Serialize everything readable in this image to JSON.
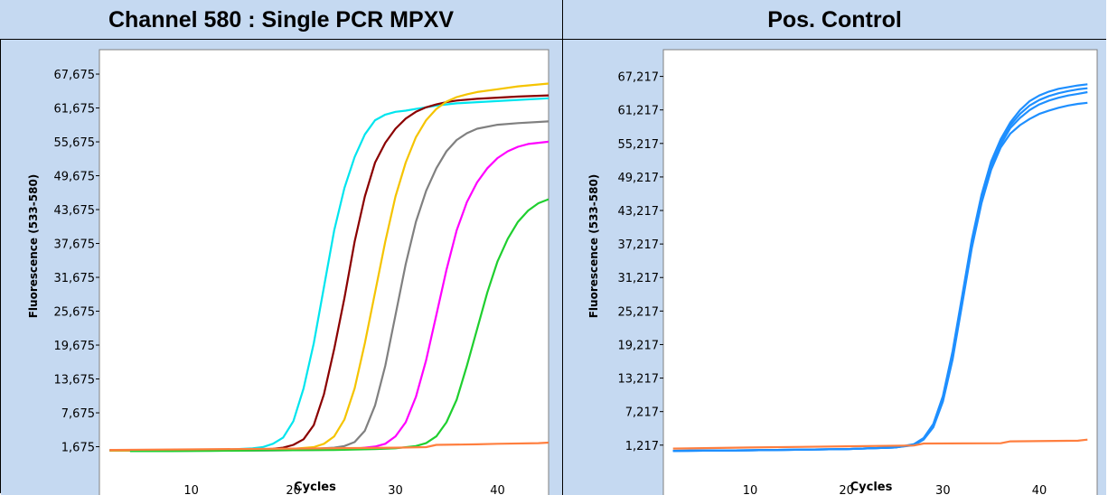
{
  "panels": [
    {
      "title": "Channel 580 : Single PCR MPXV",
      "chart_data": {
        "type": "line",
        "xlabel": "Cycles",
        "ylabel": "Fluorescence (533-580)",
        "xlim": [
          1,
          45
        ],
        "ylim": [
          -4000,
          72000
        ],
        "x_ticks": [
          10,
          20,
          30,
          40
        ],
        "y_ticks": [
          1675,
          7675,
          13675,
          19675,
          25675,
          31675,
          37675,
          43675,
          49675,
          55675,
          61675,
          67675
        ],
        "y_tick_labels": [
          "1,675",
          "7,675",
          "13,675",
          "19,675",
          "25,675",
          "31,675",
          "37,675",
          "43,675",
          "49,675",
          "55,675",
          "61,675",
          "67,675"
        ],
        "grid": false,
        "series": [
          {
            "color": "#00e5ee",
            "x": [
              2,
              6,
              10,
              14,
              16,
              17,
              18,
              19,
              20,
              21,
              22,
              23,
              24,
              25,
              26,
              27,
              28,
              29,
              30,
              31,
              32,
              33,
              34,
              35,
              36,
              38,
              40,
              42,
              45
            ],
            "values": [
              1000,
              1050,
              1100,
              1200,
              1400,
              1600,
              2200,
              3300,
              6200,
              12000,
              20000,
              30000,
              40000,
              47500,
              53000,
              57000,
              59500,
              60500,
              61000,
              61200,
              61500,
              61800,
              62100,
              62300,
              62500,
              62700,
              62900,
              63100,
              63400
            ]
          },
          {
            "color": "#8b0000",
            "x": [
              2,
              6,
              10,
              14,
              16,
              18,
              19,
              20,
              21,
              22,
              23,
              24,
              25,
              26,
              27,
              28,
              29,
              30,
              31,
              32,
              33,
              34,
              35,
              36,
              38,
              40,
              42,
              45
            ],
            "values": [
              1000,
              1000,
              1050,
              1100,
              1150,
              1300,
              1500,
              2000,
              3000,
              5500,
              11000,
              19000,
              28000,
              38000,
              46000,
              52000,
              55500,
              58000,
              59800,
              61000,
              61800,
              62300,
              62700,
              63000,
              63300,
              63500,
              63700,
              63900
            ]
          },
          {
            "color": "#f5c400",
            "x": [
              2,
              6,
              10,
              14,
              18,
              20,
              22,
              23,
              24,
              25,
              26,
              27,
              28,
              29,
              30,
              31,
              32,
              33,
              34,
              35,
              36,
              37,
              38,
              40,
              42,
              45
            ],
            "values": [
              1000,
              1000,
              1000,
              1050,
              1150,
              1300,
              1600,
              2200,
              3500,
              6500,
              12000,
              20000,
              29000,
              38000,
              46000,
              52000,
              56500,
              59500,
              61500,
              62800,
              63600,
              64100,
              64500,
              65000,
              65500,
              66000
            ]
          },
          {
            "color": "#808080",
            "x": [
              2,
              6,
              10,
              14,
              18,
              22,
              24,
              25,
              26,
              27,
              28,
              29,
              30,
              31,
              32,
              33,
              34,
              35,
              36,
              37,
              38,
              40,
              42,
              45
            ],
            "values": [
              1100,
              1100,
              1100,
              1100,
              1150,
              1300,
              1500,
              1800,
              2500,
              4500,
              9000,
              16000,
              25000,
              34000,
              41500,
              47000,
              51000,
              54000,
              56000,
              57200,
              58000,
              58700,
              59000,
              59300
            ]
          },
          {
            "color": "#ff00ff",
            "x": [
              4,
              8,
              12,
              16,
              20,
              24,
              26,
              28,
              29,
              30,
              31,
              32,
              33,
              34,
              35,
              36,
              37,
              38,
              39,
              40,
              41,
              42,
              43,
              45
            ],
            "values": [
              900,
              950,
              1000,
              1000,
              1050,
              1150,
              1300,
              1700,
              2200,
              3500,
              6000,
              10500,
              17000,
              25000,
              33000,
              40000,
              45000,
              48500,
              51000,
              52800,
              54000,
              54800,
              55300,
              55700
            ]
          },
          {
            "color": "#1fcf2f",
            "x": [
              4,
              8,
              12,
              16,
              20,
              24,
              28,
              30,
              32,
              33,
              34,
              35,
              36,
              37,
              38,
              39,
              40,
              41,
              42,
              43,
              44,
              45
            ],
            "values": [
              900,
              900,
              950,
              1000,
              1050,
              1100,
              1250,
              1400,
              1800,
              2300,
              3500,
              6000,
              10000,
              16000,
              22500,
              29000,
              34500,
              38500,
              41500,
              43500,
              44800,
              45500
            ]
          },
          {
            "color": "#ff7f3f",
            "x": [
              2,
              10,
              20,
              30,
              33,
              34,
              38,
              40,
              44,
              45
            ],
            "values": [
              1100,
              1200,
              1350,
              1500,
              1600,
              2000,
              2100,
              2200,
              2300,
              2400
            ]
          }
        ]
      }
    },
    {
      "title": "Pos. Control",
      "chart_data": {
        "type": "line",
        "xlabel": "Cycles",
        "ylabel": "Fluorescence (533-580)",
        "xlim": [
          1,
          46
        ],
        "ylim": [
          -4800,
          72000
        ],
        "x_ticks": [
          10,
          20,
          30,
          40
        ],
        "y_ticks": [
          1217,
          7217,
          13217,
          19217,
          25217,
          31217,
          37217,
          43217,
          49217,
          55217,
          61217,
          67217
        ],
        "y_tick_labels": [
          "1,217",
          "7,217",
          "13,217",
          "19,217",
          "25,217",
          "31,217",
          "37,217",
          "43,217",
          "49,217",
          "55,217",
          "61,217",
          "67,217"
        ],
        "grid": false,
        "series": [
          {
            "color": "#1e8fff",
            "x": [
              2,
              10,
              20,
              25,
              27,
              28,
              29,
              30,
              31,
              32,
              33,
              34,
              35,
              36,
              37,
              38,
              39,
              40,
              41,
              42,
              43,
              44,
              45
            ],
            "values": [
              200,
              300,
              500,
              800,
              1400,
              2500,
              5000,
              10000,
              18000,
              28000,
              38000,
              46000,
              52000,
              56000,
              59000,
              61200,
              62800,
              63800,
              64500,
              65000,
              65300,
              65600,
              65800
            ]
          },
          {
            "color": "#1e8fff",
            "x": [
              2,
              10,
              20,
              25,
              27,
              28,
              29,
              30,
              31,
              32,
              33,
              34,
              35,
              36,
              37,
              38,
              39,
              40,
              41,
              42,
              43,
              44,
              45
            ],
            "values": [
              200,
              300,
              500,
              800,
              1300,
              2400,
              4800,
              9700,
              17500,
              27500,
              37500,
              45500,
              51500,
              55500,
              58500,
              60500,
              62000,
              63000,
              63700,
              64200,
              64600,
              64900,
              65100
            ]
          },
          {
            "color": "#1e8fff",
            "x": [
              2,
              10,
              20,
              25,
              27,
              28,
              29,
              30,
              31,
              32,
              33,
              34,
              35,
              36,
              37,
              38,
              39,
              40,
              41,
              42,
              43,
              44,
              45
            ],
            "values": [
              200,
              300,
              500,
              800,
              1300,
              2300,
              4600,
              9400,
              17000,
              27000,
              37000,
              45000,
              51000,
              55000,
              58000,
              59800,
              61200,
              62200,
              62900,
              63400,
              63800,
              64100,
              64400
            ]
          },
          {
            "color": "#1e8fff",
            "x": [
              2,
              10,
              20,
              25,
              27,
              28,
              29,
              30,
              31,
              32,
              33,
              34,
              35,
              36,
              37,
              38,
              39,
              40,
              41,
              42,
              43,
              44,
              45
            ],
            "values": [
              200,
              300,
              500,
              800,
              1200,
              2200,
              4400,
              9000,
              16500,
              26500,
              36500,
              44500,
              50500,
              54500,
              57000,
              58500,
              59600,
              60500,
              61100,
              61600,
              62000,
              62300,
              62500
            ]
          },
          {
            "color": "#ff7f3f",
            "x": [
              2,
              10,
              20,
              27,
              28,
              36,
              37,
              44,
              45
            ],
            "values": [
              600,
              800,
              1000,
              1150,
              1500,
              1550,
              1900,
              2000,
              2200
            ]
          }
        ]
      }
    }
  ]
}
